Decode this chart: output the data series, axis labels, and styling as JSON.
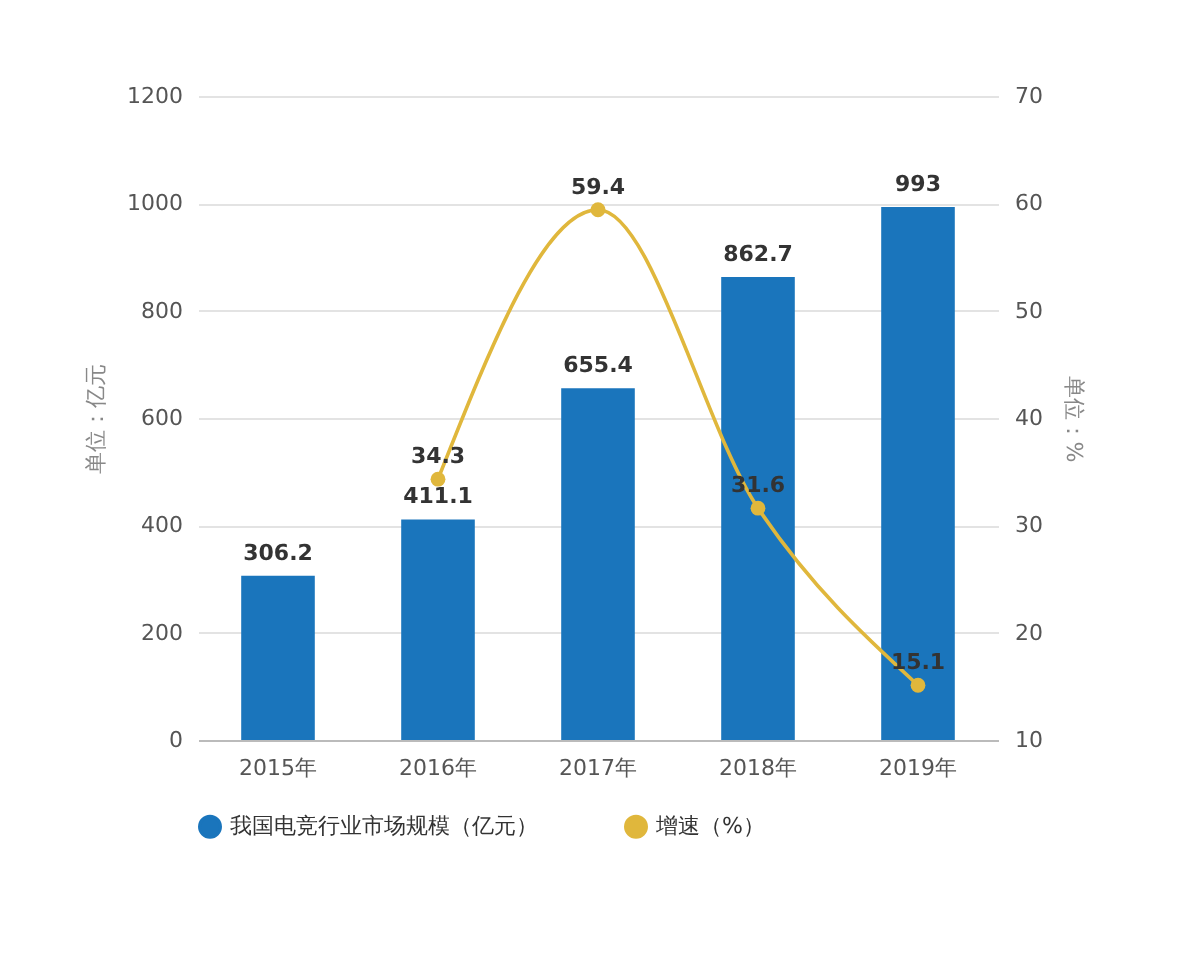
{
  "chart_data": {
    "type": "bar",
    "categories": [
      "2015年",
      "2016年",
      "2017年",
      "2018年",
      "2019年"
    ],
    "series": [
      {
        "name": "我国电竞行业市场规模（亿元）",
        "color": "#1a75bc",
        "values": [
          306.2,
          411.1,
          655.4,
          862.7,
          993
        ]
      },
      {
        "name": "增速（%）",
        "type": "line",
        "axis": "y2",
        "color": "#e0b73c",
        "values": [
          null,
          34.3,
          59.4,
          31.6,
          15.1
        ]
      }
    ],
    "ylabel": "单位：亿元",
    "y2label": "单位：%",
    "ylim": [
      0,
      1200
    ],
    "yticks": [
      0,
      200,
      400,
      600,
      800,
      1000,
      1200
    ],
    "y2lim": [
      10,
      70
    ],
    "y2ticks": [
      10,
      20,
      30,
      40,
      50,
      60,
      70
    ],
    "grid": "y",
    "legend": "bottom",
    "data_labels": true,
    "marker": "circle"
  }
}
